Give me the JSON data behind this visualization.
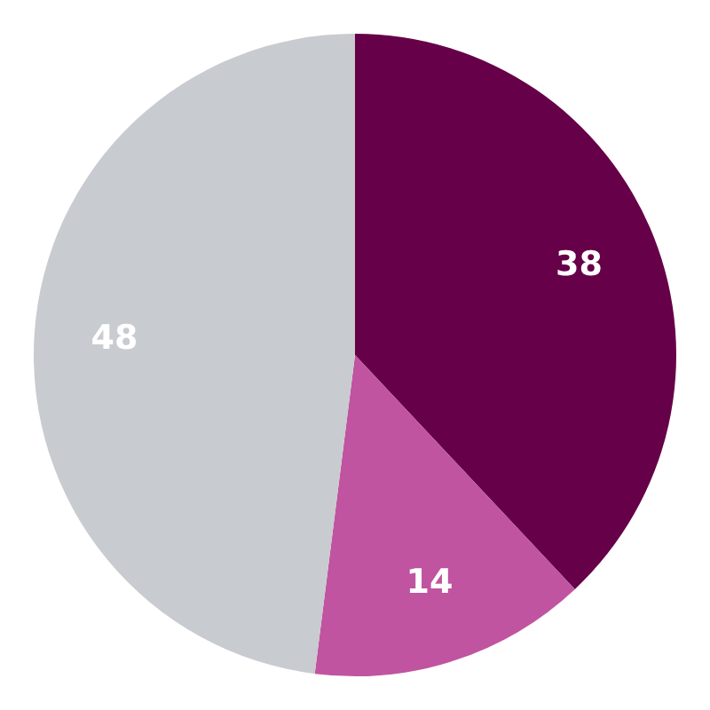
{
  "chart_data": {
    "type": "pie",
    "categories": [
      null,
      null,
      null
    ],
    "values": [
      38,
      14,
      48
    ],
    "colors": [
      "#660048",
      "#c054a0",
      "#c8cbd0"
    ],
    "data_labels": true,
    "legend": false
  }
}
